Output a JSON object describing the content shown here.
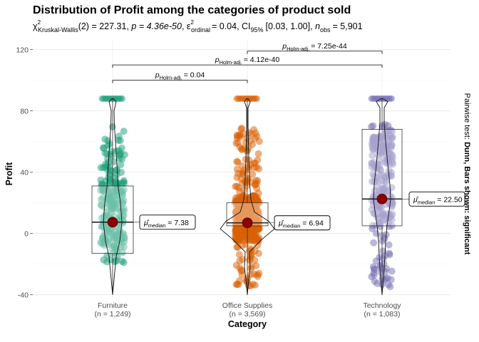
{
  "chart_data": {
    "type": "violin-box",
    "title": "Distribution of Profit among the categories of product sold",
    "subtitle": {
      "stat_name": "Kruskal-Wallis",
      "stat_value": "(2) = 227.31",
      "p_value": "p = 4.36e-50",
      "effsize_sub": "ordinal",
      "effsize_value": "= 0.04",
      "ci_sub": "95%",
      "ci_value": "[0.03, 1.00]",
      "n_obs_value": "= 5,901"
    },
    "xlabel": "Category",
    "ylabel": "Profit",
    "right_caption_plain": "Pairwise test: ",
    "right_caption_bold": "Dunn, Bars shown: significant",
    "ylim": [
      -42,
      124
    ],
    "yticks": [
      -40,
      0,
      40,
      80,
      120
    ],
    "grid": true,
    "categories": [
      "Furniture",
      "Office Supplies",
      "Technology"
    ],
    "n_labels": [
      "(n = 1,249)",
      "(n = 3,569)",
      "(n = 1,083)"
    ],
    "colors": [
      "#1b9e77",
      "#d95f02",
      "#7570b3"
    ],
    "box": [
      {
        "q1": -13,
        "median": 7.38,
        "q3": 31,
        "whisker_low": -40,
        "whisker_high": 88
      },
      {
        "q1": 5,
        "median": 6.94,
        "q3": 20,
        "whisker_low": -40,
        "whisker_high": 88
      },
      {
        "q1": 5,
        "median": 22.5,
        "q3": 68,
        "whisker_low": -40,
        "whisker_high": 88
      }
    ],
    "median_labels": [
      "7.38",
      "6.94",
      "22.50"
    ],
    "pairwise": [
      {
        "from": 0,
        "to": 1,
        "label": "= 0.04",
        "y": 100
      },
      {
        "from": 0,
        "to": 2,
        "label": "= 4.12e-40",
        "y": 110
      },
      {
        "from": 1,
        "to": 2,
        "label": "= 7.25e-44",
        "y": 119
      }
    ]
  }
}
